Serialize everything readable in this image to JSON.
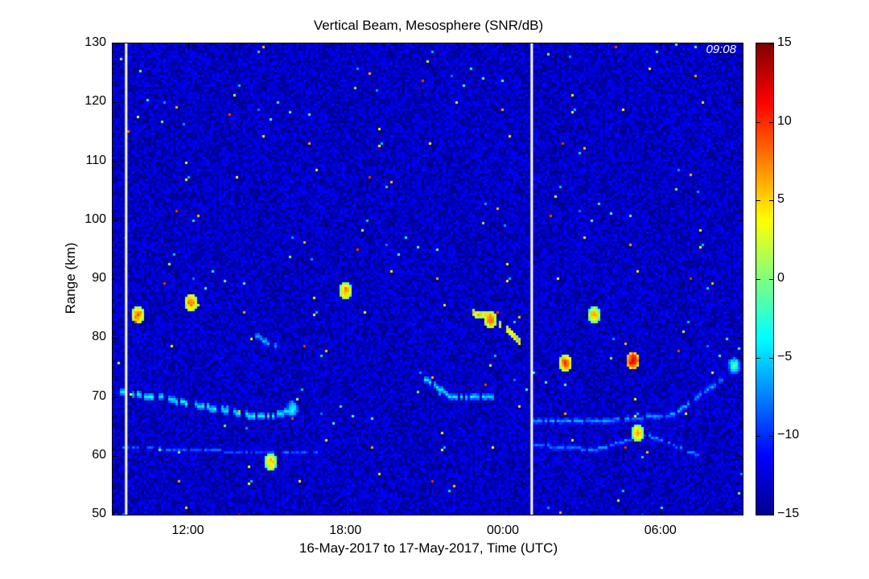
{
  "chart_data": {
    "type": "heatmap",
    "title": "Vertical Beam, Mesosphere (SNR/dB)",
    "xlabel": "16-May-2017 to 17-May-2017, Time (UTC)",
    "ylabel": "Range (km)",
    "x_range": [
      "2017-05-16T09:08",
      "2017-05-17T09:08"
    ],
    "x_ticks": [
      {
        "t": "2017-05-16T12:00",
        "label": "12:00"
      },
      {
        "t": "2017-05-16T18:00",
        "label": "18:00"
      },
      {
        "t": "2017-05-17T00:00",
        "label": "00:00"
      },
      {
        "t": "2017-05-17T06:00",
        "label": "06:00"
      }
    ],
    "ylim": [
      50,
      130
    ],
    "y_ticks": [
      50,
      60,
      70,
      80,
      90,
      100,
      110,
      120,
      130
    ],
    "colorbar": {
      "range": [
        -15,
        15
      ],
      "ticks": [
        -15,
        -10,
        -5,
        0,
        5,
        10,
        15
      ],
      "colormap": "jet"
    },
    "timestamp_label": "09:08",
    "background_snr": -13,
    "data_gaps": [
      "2017-05-16T09:38",
      "2017-05-17T01:05"
    ],
    "echo_layers": [
      {
        "points": [
          [
            "2017-05-16T09:30",
            70.8
          ],
          [
            "2017-05-16T11:00",
            69.8
          ],
          [
            "2017-05-16T13:00",
            68.0
          ],
          [
            "2017-05-16T14:30",
            66.7
          ],
          [
            "2017-05-16T15:30",
            67.0
          ],
          [
            "2017-05-16T16:00",
            68.0
          ]
        ],
        "snr": -4
      },
      {
        "points": [
          [
            "2017-05-16T09:30",
            61.5
          ],
          [
            "2017-05-16T13:00",
            60.8
          ],
          [
            "2017-05-16T17:00",
            60.5
          ]
        ],
        "snr": -9
      },
      {
        "points": [
          [
            "2017-05-16T14:30",
            80.5
          ],
          [
            "2017-05-16T15:30",
            78.0
          ]
        ],
        "snr": -6
      },
      {
        "points": [
          [
            "2017-05-16T22:40",
            84.2
          ],
          [
            "2017-05-16T23:20",
            84.0
          ],
          [
            "2017-05-16T23:50",
            82.8
          ],
          [
            "2017-05-17T00:40",
            79.5
          ]
        ],
        "snr": 5
      },
      {
        "points": [
          [
            "2017-05-16T21:00",
            73.0
          ],
          [
            "2017-05-16T22:00",
            70.0
          ],
          [
            "2017-05-16T23:40",
            70.0
          ]
        ],
        "snr": -5
      },
      {
        "points": [
          [
            "2017-05-17T01:10",
            66.0
          ],
          [
            "2017-05-17T04:00",
            66.0
          ],
          [
            "2017-05-17T06:30",
            67.0
          ],
          [
            "2017-05-17T08:30",
            73.5
          ]
        ],
        "snr": -7
      },
      {
        "points": [
          [
            "2017-05-17T01:10",
            61.8
          ],
          [
            "2017-05-17T03:30",
            61.0
          ],
          [
            "2017-05-17T05:30",
            63.5
          ],
          [
            "2017-05-17T07:30",
            60.0
          ]
        ],
        "snr": -8
      }
    ],
    "echo_patches": [
      {
        "t": "2017-05-16T10:05",
        "range_km": 83.8,
        "snr": 8
      },
      {
        "t": "2017-05-16T16:00",
        "range_km": 67.8,
        "snr": -3
      },
      {
        "t": "2017-05-16T15:10",
        "range_km": 58.8,
        "snr": 6
      },
      {
        "t": "2017-05-16T18:00",
        "range_km": 88.0,
        "snr": 7
      },
      {
        "t": "2017-05-16T12:10",
        "range_km": 86.0,
        "snr": 8
      },
      {
        "t": "2017-05-16T23:30",
        "range_km": 83.2,
        "snr": 8
      },
      {
        "t": "2017-05-17T02:25",
        "range_km": 75.8,
        "snr": 9
      },
      {
        "t": "2017-05-17T04:55",
        "range_km": 76.0,
        "snr": 12
      },
      {
        "t": "2017-05-17T05:10",
        "range_km": 63.8,
        "snr": 6
      },
      {
        "t": "2017-05-17T03:30",
        "range_km": 84.0,
        "snr": 6
      },
      {
        "t": "2017-05-17T08:50",
        "range_km": 75.5,
        "snr": -2
      }
    ]
  }
}
